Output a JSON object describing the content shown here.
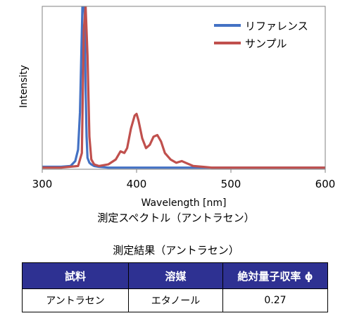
{
  "chart_data": {
    "type": "line",
    "title": "",
    "xlabel": "Wavelength [nm]",
    "ylabel": "Intensity",
    "xlim": [
      300,
      600
    ],
    "ylim": [
      0,
      1.0
    ],
    "xticks": [
      300,
      400,
      500,
      600
    ],
    "yticks_shown": false,
    "grid": false,
    "legend_position": "top-right",
    "series": [
      {
        "name": "リファレンス",
        "color": "#4472c4",
        "x": [
          300,
          320,
          330,
          335,
          338,
          340,
          342,
          343,
          344,
          345,
          346,
          347,
          348,
          350,
          352,
          355,
          360,
          370,
          400,
          450,
          500,
          600
        ],
        "y": [
          0.015,
          0.015,
          0.02,
          0.05,
          0.12,
          0.35,
          0.85,
          1.1,
          1.1,
          0.95,
          0.5,
          0.2,
          0.07,
          0.04,
          0.03,
          0.02,
          0.015,
          0.01,
          0.01,
          0.01,
          0.01,
          0.01
        ]
      },
      {
        "name": "サンプル",
        "color": "#c0504d",
        "x": [
          300,
          320,
          338,
          342,
          344,
          346,
          348,
          350,
          352,
          355,
          360,
          370,
          378,
          383,
          387,
          390,
          394,
          398,
          400,
          402,
          406,
          410,
          414,
          418,
          422,
          426,
          430,
          436,
          442,
          448,
          452,
          460,
          470,
          480,
          500,
          600
        ],
        "y": [
          0.01,
          0.01,
          0.02,
          0.1,
          0.85,
          1.0,
          0.7,
          0.2,
          0.06,
          0.03,
          0.02,
          0.03,
          0.06,
          0.11,
          0.1,
          0.13,
          0.25,
          0.33,
          0.34,
          0.3,
          0.19,
          0.13,
          0.15,
          0.2,
          0.21,
          0.17,
          0.1,
          0.06,
          0.04,
          0.05,
          0.04,
          0.02,
          0.015,
          0.01,
          0.01,
          0.01
        ]
      }
    ]
  },
  "caption": "測定スペクトル（アントラセン）",
  "results_table": {
    "title": "測定結果（アントラセン）",
    "headers": [
      "試料",
      "溶媒",
      "絶対量子収率 ϕ"
    ],
    "rows": [
      [
        "アントラセン",
        "エタノール",
        "0.27"
      ]
    ],
    "header_bg": "#2e3192"
  }
}
